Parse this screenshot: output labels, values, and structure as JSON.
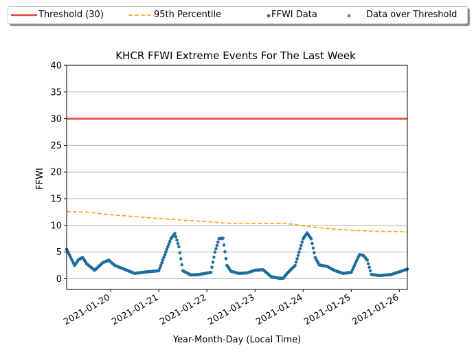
{
  "chart_data": {
    "type": "scatter",
    "title": "KHCR FFWI Extreme Events For The Last Week",
    "xlabel": "Year-Month-Day (Local Time)",
    "ylabel": "FFWI",
    "ylim": [
      -2,
      40
    ],
    "xlim": [
      "2021-01-19 02:00",
      "2021-01-26 04:00"
    ],
    "grid": "horizontal",
    "legend_position": "top, above plot",
    "y_ticks": [
      "0",
      "5",
      "10",
      "15",
      "20",
      "25",
      "30",
      "35",
      "40"
    ],
    "x_ticks": [
      "2021-01-20",
      "2021-01-21",
      "2021-01-22",
      "2021-01-23",
      "2021-01-24",
      "2021-01-25",
      "2021-01-26"
    ],
    "legend": [
      "Threshold (30)",
      "95th Percentile",
      "FFWI Data",
      "Data over Threshold"
    ],
    "colors": {
      "threshold": "#e8403a",
      "percentile": "#ff9f10",
      "data": "#1f6e9e",
      "over": "#d9535f",
      "grid": "#b0b0b0"
    },
    "series": [
      {
        "name": "Threshold (30)",
        "type": "hline",
        "value": 30
      },
      {
        "name": "95th Percentile",
        "type": "dashed-line",
        "points": [
          [
            "2021-01-19 02:00",
            12.6
          ],
          [
            "2021-01-19 12:00",
            12.5
          ],
          [
            "2021-01-20 00:00",
            12.0
          ],
          [
            "2021-01-21 00:00",
            11.3
          ],
          [
            "2021-01-22 00:00",
            10.7
          ],
          [
            "2021-01-22 12:00",
            10.4
          ],
          [
            "2021-01-23 12:00",
            10.4
          ],
          [
            "2021-01-23 20:00",
            10.2
          ],
          [
            "2021-01-24 00:00",
            9.9
          ],
          [
            "2021-01-24 12:00",
            9.4
          ],
          [
            "2021-01-25 00:00",
            9.1
          ],
          [
            "2021-01-25 12:00",
            8.9
          ],
          [
            "2021-01-26 04:00",
            8.8
          ]
        ]
      },
      {
        "name": "FFWI Data",
        "type": "scatter",
        "anchors": [
          [
            "2021-01-19 02:00",
            5.5
          ],
          [
            "2021-01-19 04:00",
            4.0
          ],
          [
            "2021-01-19 06:00",
            2.5
          ],
          [
            "2021-01-19 08:00",
            3.6
          ],
          [
            "2021-01-19 10:00",
            4.0
          ],
          [
            "2021-01-19 12:00",
            2.8
          ],
          [
            "2021-01-19 16:00",
            1.6
          ],
          [
            "2021-01-19 20:00",
            3.0
          ],
          [
            "2021-01-19 23:00",
            3.5
          ],
          [
            "2021-01-20 02:00",
            2.5
          ],
          [
            "2021-01-20 08:00",
            1.6
          ],
          [
            "2021-01-20 12:00",
            1.0
          ],
          [
            "2021-01-20 18:00",
            1.3
          ],
          [
            "2021-01-21 00:00",
            1.5
          ],
          [
            "2021-01-21 06:00",
            7.5
          ],
          [
            "2021-01-21 08:00",
            8.5
          ],
          [
            "2021-01-21 10:00",
            6.0
          ],
          [
            "2021-01-21 12:00",
            1.5
          ],
          [
            "2021-01-21 16:00",
            0.7
          ],
          [
            "2021-01-21 20:00",
            0.8
          ],
          [
            "2021-01-22 02:00",
            1.2
          ],
          [
            "2021-01-22 04:00",
            5.0
          ],
          [
            "2021-01-22 06:00",
            7.5
          ],
          [
            "2021-01-22 08:00",
            7.6
          ],
          [
            "2021-01-22 10:00",
            2.5
          ],
          [
            "2021-01-22 12:00",
            1.4
          ],
          [
            "2021-01-22 16:00",
            1.0
          ],
          [
            "2021-01-22 20:00",
            1.1
          ],
          [
            "2021-01-23 00:00",
            1.6
          ],
          [
            "2021-01-23 04:00",
            1.7
          ],
          [
            "2021-01-23 08:00",
            0.4
          ],
          [
            "2021-01-23 12:00",
            0.1
          ],
          [
            "2021-01-23 14:00",
            0.1
          ],
          [
            "2021-01-23 16:00",
            1.0
          ],
          [
            "2021-01-23 20:00",
            2.5
          ],
          [
            "2021-01-24 00:00",
            7.5
          ],
          [
            "2021-01-24 02:00",
            8.6
          ],
          [
            "2021-01-24 04:00",
            7.5
          ],
          [
            "2021-01-24 06:00",
            4.0
          ],
          [
            "2021-01-24 08:00",
            2.6
          ],
          [
            "2021-01-24 12:00",
            2.3
          ],
          [
            "2021-01-24 16:00",
            1.5
          ],
          [
            "2021-01-24 20:00",
            1.0
          ],
          [
            "2021-01-25 00:00",
            1.2
          ],
          [
            "2021-01-25 04:00",
            4.5
          ],
          [
            "2021-01-25 06:00",
            4.4
          ],
          [
            "2021-01-25 08:00",
            3.5
          ],
          [
            "2021-01-25 10:00",
            0.8
          ],
          [
            "2021-01-25 14:00",
            0.6
          ],
          [
            "2021-01-25 20:00",
            0.8
          ],
          [
            "2021-01-26 00:00",
            1.3
          ],
          [
            "2021-01-26 04:00",
            1.8
          ]
        ]
      },
      {
        "name": "Data over Threshold",
        "type": "scatter",
        "anchors": []
      }
    ]
  }
}
